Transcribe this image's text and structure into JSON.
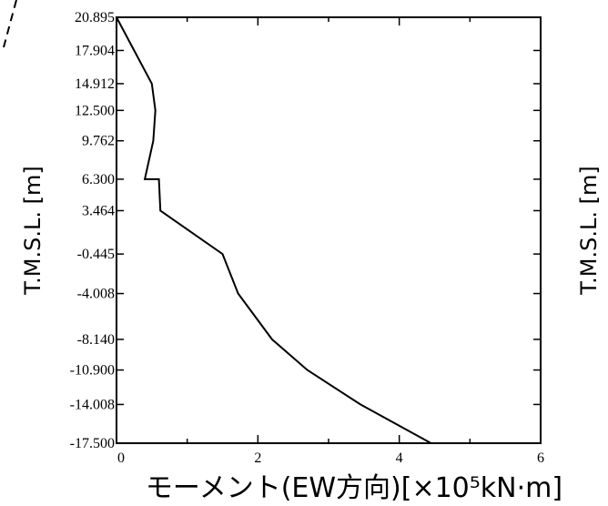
{
  "chart_data": {
    "type": "line",
    "xlabel": "モーメント(EW方向)[×10⁵kN·m]",
    "ylabel": "T.M.S.L. [m]",
    "xlim": [
      0,
      6
    ],
    "x_ticks": [
      "0",
      "2",
      "4",
      "6"
    ],
    "y_ticks": [
      "20.895",
      "17.904",
      "14.912",
      "12.500",
      "9.762",
      "6.300",
      "3.464",
      "-0.445",
      "-4.008",
      "-8.140",
      "-10.900",
      "-14.008",
      "-17.500"
    ],
    "grid": false,
    "series": [
      {
        "points": [
          {
            "x": 0.0,
            "y": 20.895
          },
          {
            "x": 0.25,
            "y": 17.904
          },
          {
            "x": 0.5,
            "y": 14.912
          },
          {
            "x": 0.55,
            "y": 12.5
          },
          {
            "x": 0.52,
            "y": 9.762
          },
          {
            "x": 0.4,
            "y": 6.3
          },
          {
            "x": 0.6,
            "y": 6.3
          },
          {
            "x": 0.62,
            "y": 3.464
          },
          {
            "x": 1.5,
            "y": -0.445
          },
          {
            "x": 1.72,
            "y": -4.008
          },
          {
            "x": 2.2,
            "y": -8.14
          },
          {
            "x": 2.7,
            "y": -10.9
          },
          {
            "x": 3.45,
            "y": -14.008
          },
          {
            "x": 4.45,
            "y": -17.5
          }
        ]
      }
    ],
    "partial_neighbor_chart": {
      "ylabel": "T.M.S.L. [m]"
    }
  }
}
